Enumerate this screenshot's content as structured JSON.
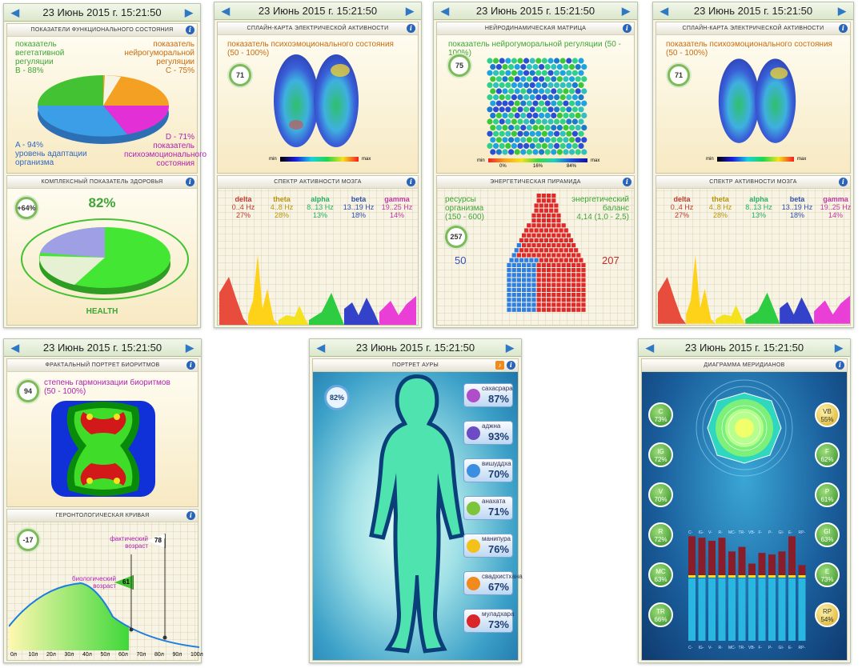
{
  "date": "23 Июнь 2015 г. 15:21:50",
  "date_short": "23 Июнь 2015 г. 15:21:50",
  "w1": {
    "title1": "ПОКАЗАТЕЛИ ФУНКЦИОНАЛЬНОГО СОСТОЯНИЯ",
    "b_label": "показатель вегетативной регуляции",
    "b_value": "B - 88%",
    "c_label": "показатель нейрогуморальной регуляции",
    "c_value": "C - 75%",
    "d_value": "D - 71%",
    "d_label": "показатель психоэмоционального состояния",
    "a_value": "A - 94%",
    "a_label": "уровень адаптации организма",
    "title2": "КОМПЛЕКСНЫЙ ПОКАЗАТЕЛЬ ЗДОРОВЬЯ",
    "health_badge": "+64%",
    "health_pct": "82%",
    "health_label": "HEALTH",
    "colors": {
      "green": "#43c233",
      "orange": "#f4a022",
      "magenta": "#e32fd6",
      "blue": "#3b9ee6"
    }
  },
  "w2": {
    "title1": "СПЛАЙН-КАРТА ЭЛЕКТРИЧЕСКОЙ АКТИВНОСТИ",
    "psy_label": "показатель психоэмоционального состояния",
    "psy_range": "(50 - 100%)",
    "badge": "71",
    "min": "min",
    "max": "max",
    "title2": "СПЕКТР АКТИВНОСТИ МОЗГА",
    "bands": [
      {
        "name": "delta",
        "hz": "0..4 Hz",
        "pct": "27%",
        "color": "#c0392b"
      },
      {
        "name": "theta",
        "hz": "4..8 Hz",
        "pct": "28%",
        "color": "#b7950b"
      },
      {
        "name": "alpha",
        "hz": "8..13 Hz",
        "pct": "13%",
        "color": "#27ae60"
      },
      {
        "name": "beta",
        "hz": "13..19 Hz",
        "pct": "18%",
        "color": "#2e4fa8"
      },
      {
        "name": "gamma",
        "hz": "19..25 Hz",
        "pct": "14%",
        "color": "#c2379f"
      }
    ]
  },
  "w3": {
    "title1": "НЕЙРОДИНАМИЧЕСКАЯ МАТРИЦА",
    "label": "показатель нейрогуморальной регуляции (50 - 100%)",
    "badge": "75",
    "min": "min",
    "max": "max",
    "scale": [
      "0%",
      "16%",
      "84%"
    ],
    "title2": "ЭНЕРГЕТИЧЕСКАЯ ПИРАМИДА",
    "res_label": "ресурсы организма",
    "res_range": "(150 - 600)",
    "bal_label": "энергетический баланс",
    "bal_value": "4,14 (1,0 - 2,5)",
    "badge2": "257",
    "left_val": "50",
    "right_val": "207"
  },
  "w4": {
    "title1": "СПЛАЙН-КАРТА ЭЛЕКТРИЧЕСКОЙ АКТИВНОСТИ",
    "psy_label": "показатель психоэмоционального состояния",
    "psy_range": "(50 - 100%)",
    "badge": "71",
    "min": "min",
    "max": "max",
    "title2": "СПЕКТР АКТИВНОСТИ МОЗГА"
  },
  "w5": {
    "title1": "ФРАКТАЛЬНЫЙ ПОРТРЕТ БИОРИТМОВ",
    "label": "степень гармонизации биоритмов",
    "range": "(50 - 100%)",
    "badge": "94",
    "title2": "ГЕРОНТОЛОГИЧЕСКАЯ КРИВАЯ",
    "badge2": "-17",
    "fact_label": "фактический возраст",
    "fact_value": "78",
    "bio_label": "биологический возраст",
    "bio_value": "61",
    "axis": [
      "0л",
      "10л",
      "20л",
      "30л",
      "40л",
      "50л",
      "60л",
      "70л",
      "80л",
      "90л",
      "100л"
    ]
  },
  "w6": {
    "title": "ПОРТРЕТ АУРЫ",
    "badge": "82%",
    "chakras": [
      {
        "name": "сахасрара",
        "pct": "87%",
        "color": "#b04dc8"
      },
      {
        "name": "аджна",
        "pct": "93%",
        "color": "#6d4bc4"
      },
      {
        "name": "вишуддха",
        "pct": "70%",
        "color": "#3b8ee0"
      },
      {
        "name": "анахата",
        "pct": "71%",
        "color": "#7cc43a"
      },
      {
        "name": "манипура",
        "pct": "76%",
        "color": "#f2c21a"
      },
      {
        "name": "свадхистхана",
        "pct": "67%",
        "color": "#f08a1c"
      },
      {
        "name": "муладхара",
        "pct": "73%",
        "color": "#d9262b"
      }
    ]
  },
  "w7": {
    "title": "ДИАГРАММА МЕРИДИАНОВ",
    "left": [
      {
        "code": "C",
        "pct": "73%"
      },
      {
        "code": "IG",
        "pct": "72%"
      },
      {
        "code": "V",
        "pct": "70%"
      },
      {
        "code": "R",
        "pct": "72%"
      },
      {
        "code": "MC",
        "pct": "63%"
      },
      {
        "code": "TR",
        "pct": "66%"
      }
    ],
    "right": [
      {
        "code": "VB",
        "pct": "55%",
        "yellow": true
      },
      {
        "code": "F",
        "pct": "62%"
      },
      {
        "code": "P",
        "pct": "61%"
      },
      {
        "code": "GI",
        "pct": "63%"
      },
      {
        "code": "E",
        "pct": "73%"
      },
      {
        "code": "RP",
        "pct": "54%",
        "yellow": true
      }
    ],
    "bars": [
      "C-",
      "IG-",
      "V-",
      "R-",
      "MC-",
      "TR-",
      "VB-",
      "F-",
      "P-",
      "GI-",
      "E-",
      "RP-"
    ],
    "bar_values": [
      73,
      72,
      70,
      72,
      63,
      66,
      55,
      62,
      61,
      63,
      73,
      54
    ]
  }
}
